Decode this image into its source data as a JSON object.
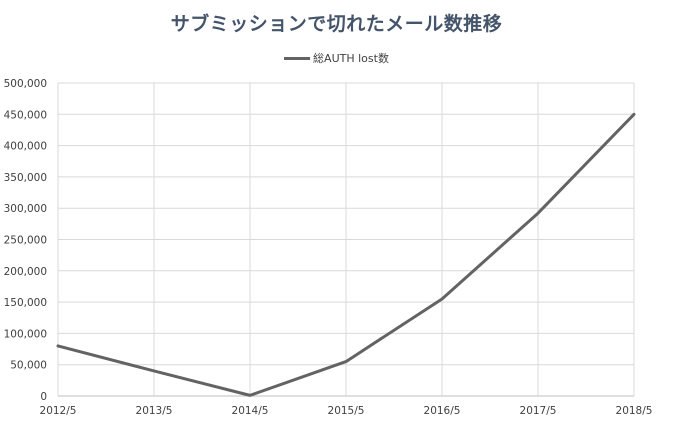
{
  "chart_data": {
    "type": "line",
    "title": "サブミッションで切れたメール数推移",
    "xlabel": "",
    "ylabel": "",
    "categories": [
      "2012/5",
      "2013/5",
      "2014/5",
      "2015/5",
      "2016/5",
      "2017/5",
      "2018/5"
    ],
    "series": [
      {
        "name": "総AUTH lost数",
        "values": [
          80000,
          40000,
          1000,
          55000,
          155000,
          292000,
          450000
        ],
        "color": "#636363"
      }
    ],
    "ylim": [
      0,
      500000
    ],
    "yticks": [
      0,
      50000,
      100000,
      150000,
      200000,
      250000,
      300000,
      350000,
      400000,
      450000,
      500000
    ],
    "ytick_labels": [
      "0",
      "50,000",
      "100,000",
      "150,000",
      "200,000",
      "250,000",
      "300,000",
      "350,000",
      "400,000",
      "450,000",
      "500,000"
    ],
    "grid": true,
    "legend_position": "top"
  }
}
